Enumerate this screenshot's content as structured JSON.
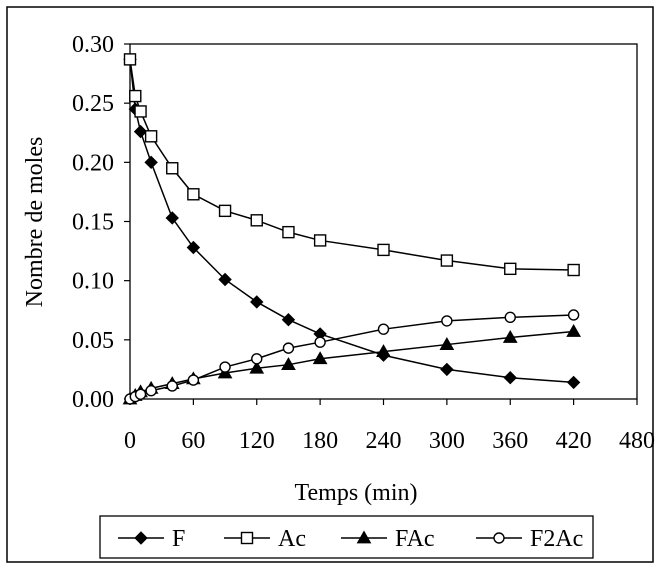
{
  "chart_data": {
    "type": "line",
    "title": "",
    "xlabel": "Temps (min)",
    "ylabel": "Nombre de moles",
    "xlim": [
      0,
      480
    ],
    "ylim": [
      0,
      0.3
    ],
    "x_ticks": [
      "0",
      "60",
      "120",
      "180",
      "240",
      "300",
      "360",
      "420",
      "480"
    ],
    "y_ticks": [
      "0.00",
      "0.05",
      "0.10",
      "0.15",
      "0.20",
      "0.25",
      "0.30"
    ],
    "grid": false,
    "legend_position": "bottom",
    "series": [
      {
        "name": "F",
        "marker": "diamond-filled",
        "x": [
          0,
          5,
          10,
          20,
          40,
          60,
          90,
          120,
          150,
          180,
          240,
          300,
          360,
          420
        ],
        "y": [
          0.287,
          0.245,
          0.226,
          0.2,
          0.153,
          0.128,
          0.101,
          0.082,
          0.067,
          0.055,
          0.037,
          0.025,
          0.018,
          0.014
        ]
      },
      {
        "name": "Ac",
        "marker": "square-open",
        "x": [
          0,
          5,
          10,
          20,
          40,
          60,
          90,
          120,
          150,
          180,
          240,
          300,
          360,
          420
        ],
        "y": [
          0.287,
          0.256,
          0.243,
          0.222,
          0.195,
          0.173,
          0.159,
          0.151,
          0.141,
          0.134,
          0.126,
          0.117,
          0.11,
          0.109
        ]
      },
      {
        "name": "FAc",
        "marker": "triangle-filled",
        "x": [
          0,
          5,
          10,
          20,
          40,
          60,
          90,
          120,
          150,
          180,
          240,
          300,
          360,
          420
        ],
        "y": [
          0.0,
          0.003,
          0.006,
          0.009,
          0.013,
          0.017,
          0.022,
          0.026,
          0.029,
          0.034,
          0.04,
          0.046,
          0.052,
          0.057
        ]
      },
      {
        "name": "F2Ac",
        "marker": "circle-open",
        "x": [
          0,
          5,
          10,
          20,
          40,
          60,
          90,
          120,
          150,
          180,
          240,
          300,
          360,
          420
        ],
        "y": [
          0.0,
          0.002,
          0.004,
          0.007,
          0.011,
          0.016,
          0.027,
          0.034,
          0.043,
          0.048,
          0.059,
          0.066,
          0.069,
          0.071
        ]
      }
    ]
  }
}
